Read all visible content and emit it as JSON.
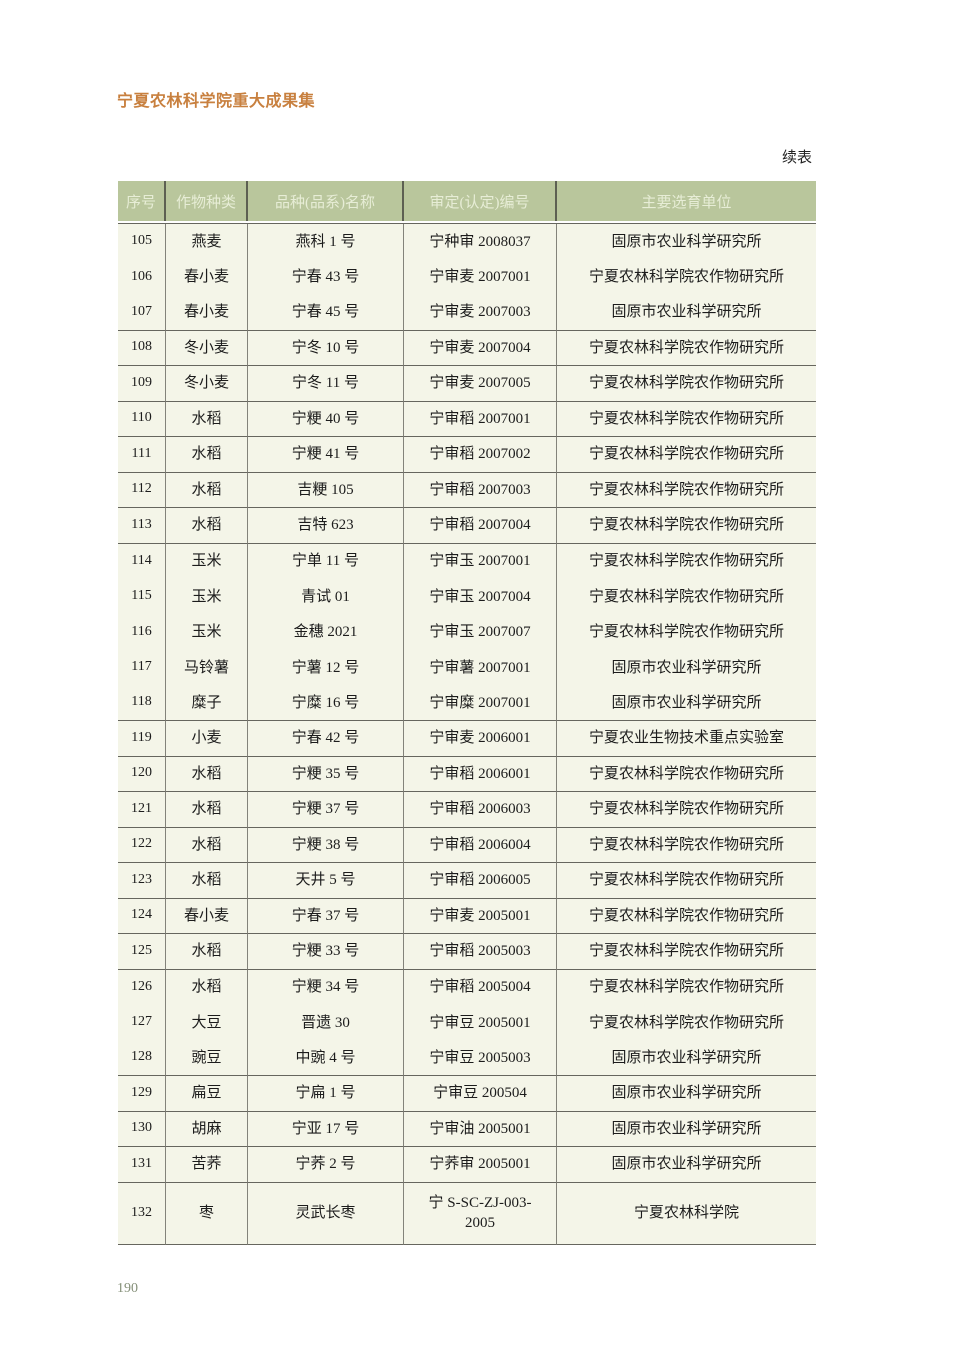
{
  "page": {
    "book_title": "宁夏农林科学院重大成果集",
    "continued_label": "续表",
    "page_number": "190"
  },
  "colors": {
    "accent_title": "#c8803f",
    "header_bg": "#b9c69c",
    "header_text": "#e7edd6",
    "body_bg": "#f4f5e8",
    "rule": "#66665e",
    "grid_line": "#83837a",
    "page_number": "#859079"
  },
  "table": {
    "columns": [
      "序号",
      "作物种类",
      "品种(品系)名称",
      "审定(认定)编号",
      "主要选育单位"
    ],
    "rows": [
      {
        "no": "105",
        "crop": "燕麦",
        "variety": "燕科 1 号",
        "code": "宁种审 2008037",
        "unit": "固原市农业科学研究所",
        "rule_below": false,
        "tall": false
      },
      {
        "no": "106",
        "crop": "春小麦",
        "variety": "宁春 43 号",
        "code": "宁审麦 2007001",
        "unit": "宁夏农林科学院农作物研究所",
        "rule_below": false,
        "tall": false
      },
      {
        "no": "107",
        "crop": "春小麦",
        "variety": "宁春 45 号",
        "code": "宁审麦 2007003",
        "unit": "固原市农业科学研究所",
        "rule_below": true,
        "tall": false
      },
      {
        "no": "108",
        "crop": "冬小麦",
        "variety": "宁冬 10 号",
        "code": "宁审麦 2007004",
        "unit": "宁夏农林科学院农作物研究所",
        "rule_below": true,
        "tall": false
      },
      {
        "no": "109",
        "crop": "冬小麦",
        "variety": "宁冬 11 号",
        "code": "宁审麦 2007005",
        "unit": "宁夏农林科学院农作物研究所",
        "rule_below": true,
        "tall": false
      },
      {
        "no": "110",
        "crop": "水稻",
        "variety": "宁粳 40 号",
        "code": "宁审稻 2007001",
        "unit": "宁夏农林科学院农作物研究所",
        "rule_below": true,
        "tall": false
      },
      {
        "no": "111",
        "crop": "水稻",
        "variety": "宁粳 41 号",
        "code": "宁审稻 2007002",
        "unit": "宁夏农林科学院农作物研究所",
        "rule_below": true,
        "tall": false
      },
      {
        "no": "112",
        "crop": "水稻",
        "variety": "吉粳 105",
        "code": "宁审稻 2007003",
        "unit": "宁夏农林科学院农作物研究所",
        "rule_below": true,
        "tall": false
      },
      {
        "no": "113",
        "crop": "水稻",
        "variety": "吉特 623",
        "code": "宁审稻 2007004",
        "unit": "宁夏农林科学院农作物研究所",
        "rule_below": true,
        "tall": false
      },
      {
        "no": "114",
        "crop": "玉米",
        "variety": "宁单 11 号",
        "code": "宁审玉 2007001",
        "unit": "宁夏农林科学院农作物研究所",
        "rule_below": false,
        "tall": false
      },
      {
        "no": "115",
        "crop": "玉米",
        "variety": "青试 01",
        "code": "宁审玉 2007004",
        "unit": "宁夏农林科学院农作物研究所",
        "rule_below": false,
        "tall": false
      },
      {
        "no": "116",
        "crop": "玉米",
        "variety": "金穗 2021",
        "code": "宁审玉 2007007",
        "unit": "宁夏农林科学院农作物研究所",
        "rule_below": false,
        "tall": false
      },
      {
        "no": "117",
        "crop": "马铃薯",
        "variety": "宁薯 12 号",
        "code": "宁审薯 2007001",
        "unit": "固原市农业科学研究所",
        "rule_below": false,
        "tall": false
      },
      {
        "no": "118",
        "crop": "糜子",
        "variety": "宁糜 16 号",
        "code": "宁审糜 2007001",
        "unit": "固原市农业科学研究所",
        "rule_below": true,
        "tall": false
      },
      {
        "no": "119",
        "crop": "小麦",
        "variety": "宁春 42 号",
        "code": "宁审麦 2006001",
        "unit": "宁夏农业生物技术重点实验室",
        "rule_below": true,
        "tall": false
      },
      {
        "no": "120",
        "crop": "水稻",
        "variety": "宁粳 35 号",
        "code": "宁审稻 2006001",
        "unit": "宁夏农林科学院农作物研究所",
        "rule_below": true,
        "tall": false
      },
      {
        "no": "121",
        "crop": "水稻",
        "variety": "宁粳 37 号",
        "code": "宁审稻 2006003",
        "unit": "宁夏农林科学院农作物研究所",
        "rule_below": true,
        "tall": false
      },
      {
        "no": "122",
        "crop": "水稻",
        "variety": "宁粳 38 号",
        "code": "宁审稻 2006004",
        "unit": "宁夏农林科学院农作物研究所",
        "rule_below": true,
        "tall": false
      },
      {
        "no": "123",
        "crop": "水稻",
        "variety": "天井 5 号",
        "code": "宁审稻 2006005",
        "unit": "宁夏农林科学院农作物研究所",
        "rule_below": true,
        "tall": false
      },
      {
        "no": "124",
        "crop": "春小麦",
        "variety": "宁春 37 号",
        "code": "宁审麦 2005001",
        "unit": "宁夏农林科学院农作物研究所",
        "rule_below": true,
        "tall": false
      },
      {
        "no": "125",
        "crop": "水稻",
        "variety": "宁粳 33 号",
        "code": "宁审稻 2005003",
        "unit": "宁夏农林科学院农作物研究所",
        "rule_below": true,
        "tall": false
      },
      {
        "no": "126",
        "crop": "水稻",
        "variety": "宁粳 34 号",
        "code": "宁审稻 2005004",
        "unit": "宁夏农林科学院农作物研究所",
        "rule_below": false,
        "tall": false
      },
      {
        "no": "127",
        "crop": "大豆",
        "variety": "晋遗 30",
        "code": "宁审豆 2005001",
        "unit": "宁夏农林科学院农作物研究所",
        "rule_below": false,
        "tall": false
      },
      {
        "no": "128",
        "crop": "豌豆",
        "variety": "中豌 4 号",
        "code": "宁审豆 2005003",
        "unit": "固原市农业科学研究所",
        "rule_below": true,
        "tall": false
      },
      {
        "no": "129",
        "crop": "扁豆",
        "variety": "宁扁 1 号",
        "code": "宁审豆 200504",
        "unit": "固原市农业科学研究所",
        "rule_below": true,
        "tall": false
      },
      {
        "no": "130",
        "crop": "胡麻",
        "variety": "宁亚 17 号",
        "code": "宁审油 2005001",
        "unit": "固原市农业科学研究所",
        "rule_below": true,
        "tall": false
      },
      {
        "no": "131",
        "crop": "苦荞",
        "variety": "宁荞 2 号",
        "code": "宁荞审 2005001",
        "unit": "固原市农业科学研究所",
        "rule_below": true,
        "tall": false
      },
      {
        "no": "132",
        "crop": "枣",
        "variety": "灵武长枣",
        "code": "宁 S-SC-ZJ-003-\n2005",
        "unit": "宁夏农林科学院",
        "rule_below": true,
        "tall": true
      }
    ]
  }
}
